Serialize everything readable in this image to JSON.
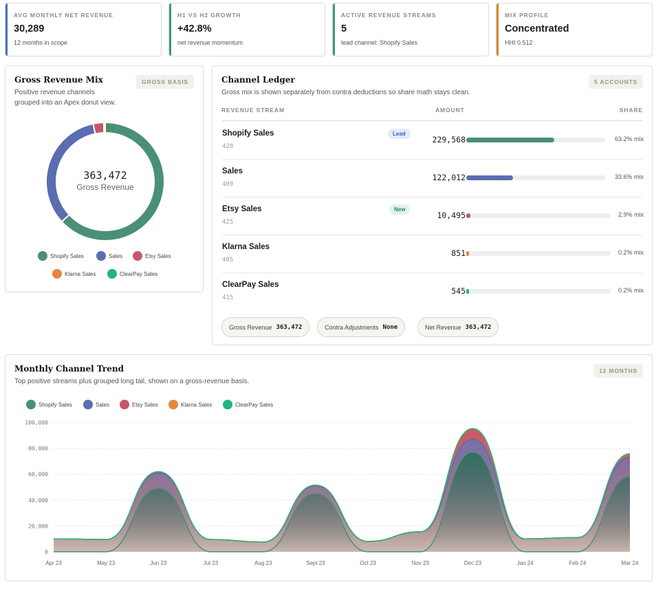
{
  "kpis": [
    {
      "label": "AVG MONTHLY NET REVENUE",
      "value": "30,289",
      "sub": "12 months in scope",
      "color": "#4a6fc2"
    },
    {
      "label": "H1 VS H2 GROWTH",
      "value": "+42.8%",
      "sub": "net revenue momentum",
      "color": "#3d9a72"
    },
    {
      "label": "ACTIVE REVENUE STREAMS",
      "value": "5",
      "sub": "lead channel: Shopify Sales",
      "color": "#3d9a72"
    },
    {
      "label": "MIX PROFILE",
      "value": "Concentrated",
      "sub": "HHI 0.512",
      "color": "#d9822b"
    }
  ],
  "mix": {
    "title": "Gross Revenue Mix",
    "subtitle_line1": "Positive revenue channels",
    "subtitle_line2": "grouped into an Apex donut view.",
    "badge": "GROSS BASIS",
    "center_value": "363,472",
    "center_label": "Gross Revenue"
  },
  "ledger": {
    "title": "Channel Ledger",
    "subtitle": "Gross mix is shown separately from contra deductions so share math stays clean.",
    "badge": "5 ACCOUNTS",
    "col_stream": "REVENUE STREAM",
    "col_amount": "AMOUNT",
    "col_share": "SHARE",
    "rows": [
      {
        "name": "Shopify Sales",
        "code": "420",
        "amount": "229,568",
        "share": "63.2% mix",
        "pct": 63.2,
        "color": "#4a8f78",
        "tag": "Lead",
        "tag_bg": "#e3ebfa",
        "tag_fg": "#3b5fb5"
      },
      {
        "name": "Sales",
        "code": "400",
        "amount": "122,012",
        "share": "33.6% mix",
        "pct": 33.6,
        "color": "#5b6db0",
        "tag": "",
        "tag_bg": "",
        "tag_fg": ""
      },
      {
        "name": "Etsy Sales",
        "code": "425",
        "amount": "10,495",
        "share": "2.9% mix",
        "pct": 2.9,
        "color": "#c8566a",
        "tag": "New",
        "tag_bg": "#e2f3ea",
        "tag_fg": "#2d8a5a"
      },
      {
        "name": "Klarna Sales",
        "code": "405",
        "amount": "851",
        "share": "0.2% mix",
        "pct": 0.2,
        "color": "#e8873a",
        "tag": "",
        "tag_bg": "",
        "tag_fg": ""
      },
      {
        "name": "ClearPay Sales",
        "code": "415",
        "amount": "545",
        "share": "0.2% mix",
        "pct": 0.2,
        "color": "#1fb57f",
        "tag": "",
        "tag_bg": "",
        "tag_fg": ""
      }
    ],
    "pills": [
      {
        "label": "Gross Revenue",
        "value": "363,472"
      },
      {
        "label": "Contra Adjustments",
        "value": "None"
      },
      {
        "label": "Net Revenue",
        "value": "363,472"
      }
    ]
  },
  "trend": {
    "title": "Monthly Channel Trend",
    "subtitle": "Top positive streams plus grouped long tail, shown on a gross-revenue basis.",
    "badge": "12 MONTHS"
  },
  "legend": [
    {
      "name": "Shopify Sales",
      "color": "#4a8f78"
    },
    {
      "name": "Sales",
      "color": "#5b6db0"
    },
    {
      "name": "Etsy Sales",
      "color": "#c8566a"
    },
    {
      "name": "Klarna Sales",
      "color": "#e8873a"
    },
    {
      "name": "ClearPay Sales",
      "color": "#1fb57f"
    }
  ],
  "chart_data": [
    {
      "type": "pie",
      "categories": [
        "Shopify Sales",
        "Sales",
        "Etsy Sales",
        "Klarna Sales",
        "ClearPay Sales"
      ],
      "values": [
        229568,
        122012,
        10495,
        851,
        545
      ]
    },
    {
      "type": "area",
      "stacked": true,
      "categories": [
        "Apr 23",
        "May 23",
        "Jun 23",
        "Jul 23",
        "Aug 23",
        "Sept 23",
        "Oct 23",
        "Nov 23",
        "Dec 23",
        "Jan 24",
        "Feb 24",
        "Mar 24"
      ],
      "yticks": [
        "0",
        "20,000",
        "40,000",
        "60,000",
        "80,000",
        "100,000"
      ],
      "ylim": [
        0,
        100000
      ],
      "series": [
        {
          "name": "Shopify Sales",
          "values": [
            0,
            0,
            49000,
            0,
            0,
            45000,
            0,
            0,
            77000,
            0,
            0,
            58000
          ]
        },
        {
          "name": "Sales",
          "values": [
            10000,
            9500,
            12000,
            9500,
            7500,
            6000,
            8000,
            15500,
            10000,
            10000,
            11000,
            15000
          ]
        },
        {
          "name": "Etsy Sales",
          "values": [
            0,
            0,
            800,
            0,
            0,
            500,
            0,
            0,
            8000,
            0,
            0,
            2000
          ]
        },
        {
          "name": "Klarna Sales",
          "values": [
            0,
            0,
            100,
            0,
            0,
            0,
            0,
            0,
            200,
            0,
            0,
            500
          ]
        },
        {
          "name": "ClearPay Sales",
          "values": [
            0,
            0,
            100,
            0,
            0,
            0,
            0,
            0,
            100,
            0,
            0,
            300
          ]
        }
      ]
    }
  ]
}
